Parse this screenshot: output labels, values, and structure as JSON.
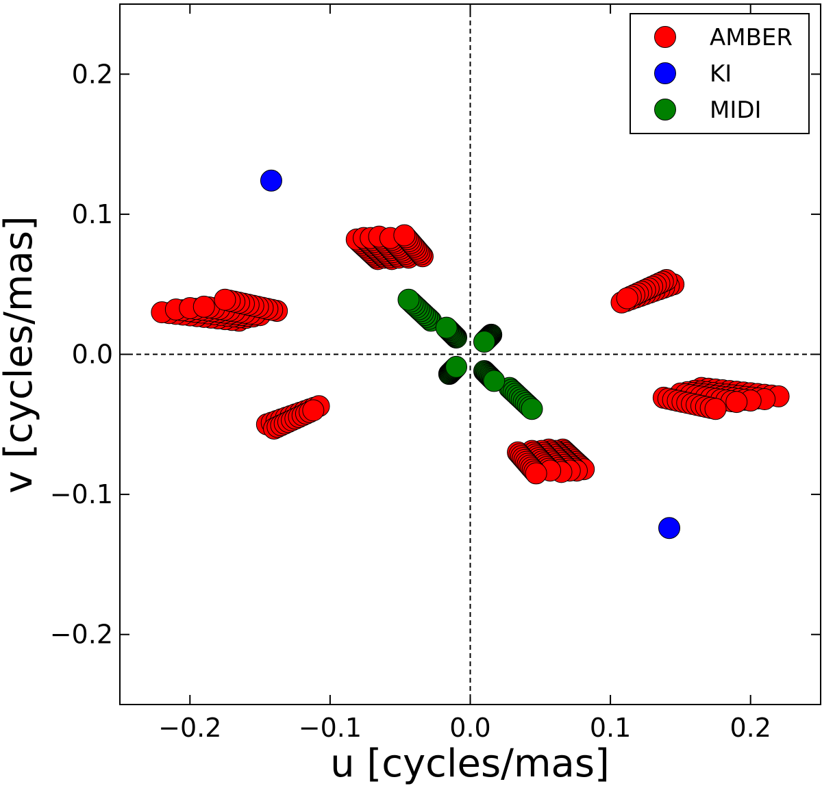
{
  "chart_data": {
    "type": "scatter",
    "title": "",
    "xlabel": "u [cycles/mas]",
    "ylabel": "v [cycles/mas]",
    "xlim": [
      -0.25,
      0.25
    ],
    "ylim": [
      -0.25,
      0.25
    ],
    "xticks": [
      -0.2,
      -0.1,
      0.0,
      0.1,
      0.2
    ],
    "yticks": [
      -0.2,
      -0.1,
      0.0,
      0.1,
      0.2
    ],
    "xtick_labels": [
      "−0.2",
      "−0.1",
      "0.0",
      "0.1",
      "0.2"
    ],
    "ytick_labels": [
      "−0.2",
      "−0.1",
      "0.0",
      "0.1",
      "0.2"
    ],
    "grid": false,
    "reference_lines": {
      "x": 0.0,
      "y": 0.0,
      "style": "dashed"
    },
    "legend_position": "top-right",
    "series": [
      {
        "name": "AMBER",
        "color": "#ff0000",
        "tracks": [
          [
            [
              -0.081,
              0.082
            ],
            [
              -0.066,
              0.068
            ]
          ],
          [
            [
              -0.076,
              0.083
            ],
            [
              -0.061,
              0.069
            ]
          ],
          [
            [
              -0.071,
              0.083
            ],
            [
              -0.056,
              0.068
            ]
          ],
          [
            [
              -0.065,
              0.084
            ],
            [
              -0.051,
              0.069
            ]
          ],
          [
            [
              -0.057,
              0.083
            ],
            [
              -0.044,
              0.069
            ]
          ],
          [
            [
              -0.047,
              0.085
            ],
            [
              -0.034,
              0.07
            ]
          ],
          [
            [
              0.081,
              -0.082
            ],
            [
              0.066,
              -0.068
            ]
          ],
          [
            [
              0.076,
              -0.083
            ],
            [
              0.061,
              -0.069
            ]
          ],
          [
            [
              0.071,
              -0.083
            ],
            [
              0.056,
              -0.068
            ]
          ],
          [
            [
              0.065,
              -0.084
            ],
            [
              0.051,
              -0.069
            ]
          ],
          [
            [
              0.057,
              -0.083
            ],
            [
              0.044,
              -0.069
            ]
          ],
          [
            [
              0.047,
              -0.085
            ],
            [
              0.034,
              -0.07
            ]
          ],
          [
            [
              -0.22,
              0.03
            ],
            [
              -0.165,
              0.024
            ]
          ],
          [
            [
              -0.21,
              0.032
            ],
            [
              -0.16,
              0.026
            ]
          ],
          [
            [
              -0.2,
              0.033
            ],
            [
              -0.155,
              0.027
            ]
          ],
          [
            [
              -0.19,
              0.034
            ],
            [
              -0.15,
              0.028
            ]
          ],
          [
            [
              -0.175,
              0.039
            ],
            [
              -0.138,
              0.031
            ]
          ],
          [
            [
              0.22,
              -0.03
            ],
            [
              0.165,
              -0.024
            ]
          ],
          [
            [
              0.21,
              -0.032
            ],
            [
              0.16,
              -0.026
            ]
          ],
          [
            [
              0.2,
              -0.033
            ],
            [
              0.155,
              -0.027
            ]
          ],
          [
            [
              0.19,
              -0.034
            ],
            [
              0.15,
              -0.028
            ]
          ],
          [
            [
              0.175,
              -0.039
            ],
            [
              0.138,
              -0.031
            ]
          ],
          [
            [
              0.108,
              0.037
            ],
            [
              0.145,
              0.05
            ]
          ],
          [
            [
              0.112,
              0.04
            ],
            [
              0.14,
              0.053
            ]
          ],
          [
            [
              -0.108,
              -0.037
            ],
            [
              -0.145,
              -0.05
            ]
          ],
          [
            [
              -0.112,
              -0.04
            ],
            [
              -0.14,
              -0.053
            ]
          ]
        ]
      },
      {
        "name": "KI",
        "color": "#0000ff",
        "points": [
          [
            -0.142,
            0.124
          ],
          [
            0.142,
            -0.124
          ]
        ]
      },
      {
        "name": "MIDI",
        "color": "#008000",
        "tracks": [
          [
            [
              -0.044,
              0.039
            ],
            [
              -0.028,
              0.024
            ]
          ],
          [
            [
              -0.017,
              0.019
            ],
            [
              -0.01,
              0.012
            ]
          ],
          [
            [
              0.01,
              0.009
            ],
            [
              0.015,
              0.014
            ]
          ],
          [
            [
              0.044,
              -0.039
            ],
            [
              0.028,
              -0.024
            ]
          ],
          [
            [
              0.017,
              -0.019
            ],
            [
              0.01,
              -0.012
            ]
          ],
          [
            [
              -0.01,
              -0.009
            ],
            [
              -0.015,
              -0.014
            ]
          ]
        ]
      }
    ]
  }
}
